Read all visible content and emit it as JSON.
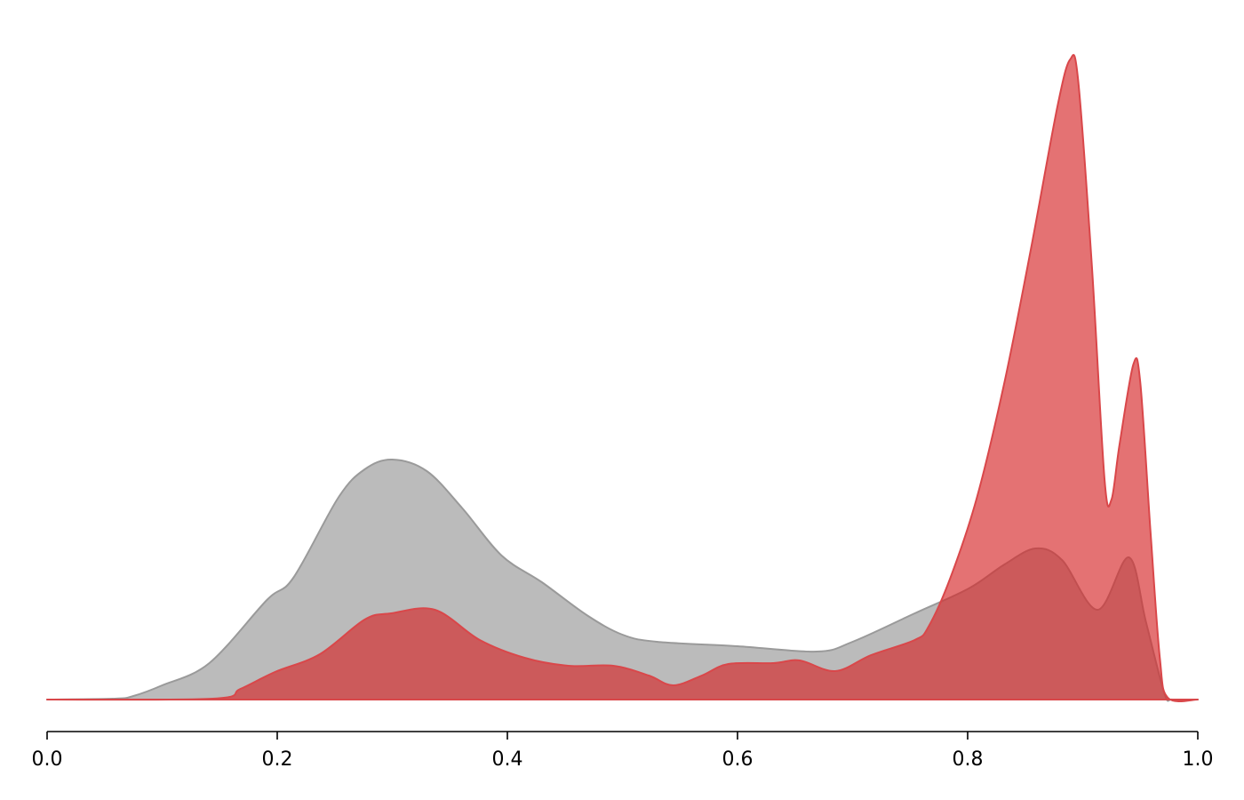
{
  "chart_data": {
    "type": "density",
    "series": [
      {
        "color": "#bbbbbb",
        "edge": "#9a9a9a",
        "opacity": 1,
        "x": [
          0,
          0.059,
          0.075,
          0.1,
          0.141,
          0.191,
          0.214,
          0.253,
          0.276,
          0.3,
          0.33,
          0.361,
          0.395,
          0.43,
          0.469,
          0.5,
          0.53,
          0.6,
          0.669,
          0.7,
          0.754,
          0.801,
          0.832,
          0.859,
          0.882,
          0.913,
          0.94,
          0.955,
          0.971,
          0.978,
          1
        ],
        "values": [
          0,
          0.01,
          0.04,
          0.16,
          0.41,
          1.12,
          1.37,
          2.27,
          2.59,
          2.7,
          2.57,
          2.15,
          1.62,
          1.32,
          0.95,
          0.73,
          0.65,
          0.6,
          0.54,
          0.65,
          0.97,
          1.25,
          1.52,
          1.7,
          1.57,
          1.01,
          1.6,
          0.87,
          0.07,
          0,
          0
        ]
      },
      {
        "color": "#d62728",
        "edge": "#d9474a",
        "opacity": 0.65,
        "x": [
          0,
          0.144,
          0.168,
          0.198,
          0.237,
          0.276,
          0.299,
          0.337,
          0.376,
          0.415,
          0.453,
          0.492,
          0.523,
          0.544,
          0.569,
          0.592,
          0.631,
          0.654,
          0.685,
          0.716,
          0.754,
          0.766,
          0.785,
          0.808,
          0.832,
          0.855,
          0.878,
          0.889,
          0.896,
          0.908,
          0.919,
          0.925,
          0.932,
          0.944,
          0.95,
          0.959,
          0.967,
          0.974,
          1
        ],
        "values": [
          0,
          0.01,
          0.12,
          0.31,
          0.51,
          0.9,
          0.97,
          1.01,
          0.67,
          0.47,
          0.38,
          0.38,
          0.27,
          0.16,
          0.27,
          0.4,
          0.41,
          0.44,
          0.32,
          0.5,
          0.67,
          0.82,
          1.37,
          2.27,
          3.57,
          5.07,
          6.67,
          7.2,
          6.97,
          4.87,
          2.47,
          2.25,
          2.87,
          3.77,
          3.57,
          1.87,
          0.47,
          0.02,
          0
        ]
      }
    ],
    "xlim": [
      0,
      1
    ],
    "ylim": [
      0,
      7.5
    ],
    "xticks": [
      {
        "value": 0,
        "label": "0.0"
      },
      0.2,
      0.4,
      0.6,
      0.8,
      {
        "value": 1,
        "label": "1.0"
      }
    ]
  }
}
